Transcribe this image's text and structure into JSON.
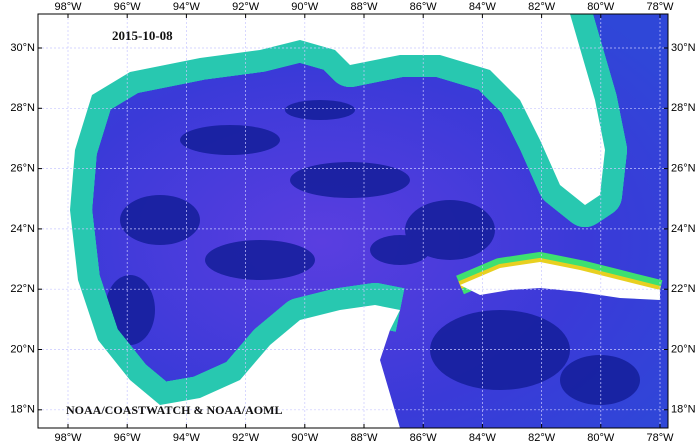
{
  "map": {
    "date": "2015-10-08",
    "credit": "NOAA/COASTWATCH & NOAA/AOML",
    "lon_labels": [
      "98°W",
      "96°W",
      "94°W",
      "92°W",
      "90°W",
      "88°W",
      "86°W",
      "84°W",
      "82°W",
      "80°W",
      "78°W"
    ],
    "lat_labels": [
      "30°N",
      "28°N",
      "26°N",
      "24°N",
      "22°N",
      "20°N",
      "18°N"
    ]
  }
}
